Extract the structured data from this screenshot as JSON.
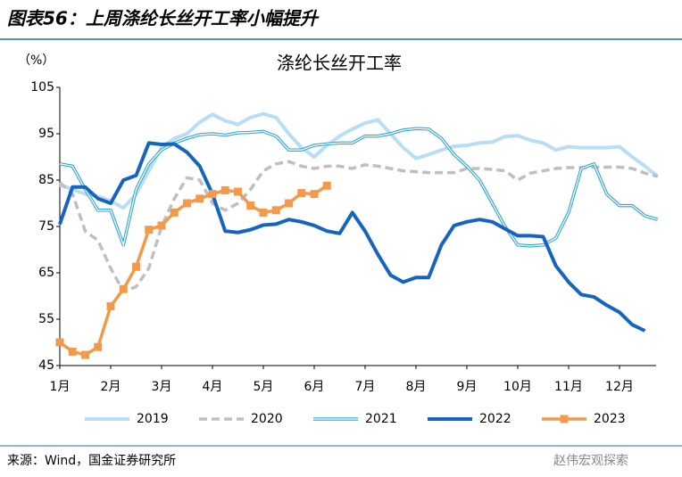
{
  "header": "图表56：上周涤纶长丝开工率小幅提升",
  "source": "来源：Wind，国金证券研究所",
  "watermark": "赵伟宏观探索",
  "chart_data": {
    "type": "line",
    "title": "涤纶长丝开工率",
    "y_label": "（%）",
    "x": [
      1,
      1.25,
      1.5,
      1.75,
      2,
      2.25,
      2.5,
      2.75,
      3,
      3.25,
      3.5,
      3.75,
      4,
      4.25,
      4.5,
      4.75,
      5,
      5.25,
      5.5,
      5.75,
      6,
      6.25,
      6.5,
      6.75,
      7,
      7.25,
      7.5,
      7.75,
      8,
      8.25,
      8.5,
      8.75,
      9,
      9.25,
      9.5,
      9.75,
      10,
      10.25,
      10.5,
      10.75,
      11,
      11.25,
      11.5,
      11.75,
      12,
      12.25,
      12.5,
      12.75
    ],
    "xlim": [
      1,
      12.72
    ],
    "xticks": [
      {
        "value": 1,
        "label": "1月"
      },
      {
        "value": 2,
        "label": "2月"
      },
      {
        "value": 3,
        "label": "3月"
      },
      {
        "value": 4,
        "label": "4月"
      },
      {
        "value": 5,
        "label": "5月"
      },
      {
        "value": 6,
        "label": "6月"
      },
      {
        "value": 7,
        "label": "7月"
      },
      {
        "value": 8,
        "label": "8月"
      },
      {
        "value": 9,
        "label": "9月"
      },
      {
        "value": 10,
        "label": "10月"
      },
      {
        "value": 11,
        "label": "11月"
      },
      {
        "value": 12,
        "label": "12月"
      }
    ],
    "ylim": [
      45,
      105
    ],
    "yticks": [
      45,
      55,
      65,
      75,
      85,
      95,
      105
    ],
    "grid": false,
    "legend": "bottom",
    "series": [
      {
        "name": "2019",
        "color": "#b8def5",
        "style": "solid",
        "values": [
          84,
          83,
          82,
          81.5,
          80.5,
          79,
          82,
          87,
          92,
          94,
          95,
          97.5,
          99.2,
          97.8,
          97,
          98.5,
          99.3,
          98.5,
          95,
          92,
          90,
          92.5,
          94.5,
          96,
          97.3,
          98,
          95,
          92,
          89.7,
          90.5,
          91.5,
          92.3,
          92.5,
          93,
          93.2,
          94.4,
          94.6,
          93.6,
          93,
          91.5,
          92.2,
          92,
          92,
          92,
          92.2,
          90,
          88,
          85.8
        ]
      },
      {
        "name": "2020",
        "color": "#bfbfbf",
        "style": "dashed",
        "values": [
          84.5,
          82,
          74,
          72,
          66,
          61,
          62,
          66,
          75,
          81,
          85.5,
          85,
          80,
          78.5,
          80,
          83,
          87,
          88.5,
          89,
          88,
          87.5,
          88,
          88,
          87.5,
          88.3,
          88,
          87.5,
          87,
          86.8,
          86.6,
          86.6,
          86.6,
          87.5,
          87.5,
          87.3,
          87,
          85,
          86.5,
          87,
          87.5,
          87.7,
          87.7,
          87.8,
          87.8,
          87.8,
          87.5,
          86.5,
          85.8
        ]
      },
      {
        "name": "2021",
        "color": "#2ea6d8",
        "style": "double",
        "values": [
          88.5,
          88,
          83,
          78.5,
          78.5,
          71,
          83,
          88.5,
          91.5,
          93,
          94,
          94.8,
          95,
          94.7,
          95.2,
          95.3,
          95.5,
          94.5,
          91.5,
          91.5,
          92.5,
          92.8,
          93,
          93,
          94.5,
          94.5,
          95,
          95.8,
          96.1,
          96,
          94,
          90.5,
          88,
          85,
          80,
          75,
          71,
          70.8,
          71,
          72.5,
          78,
          87.5,
          88.5,
          82,
          79.5,
          79.5,
          77.3,
          76.5
        ]
      },
      {
        "name": "2022",
        "color": "#1565c0",
        "style": "solid",
        "values": [
          75.5,
          83.5,
          83.5,
          81,
          80,
          85,
          86,
          93,
          92.7,
          92.8,
          91,
          88,
          82,
          74,
          73.7,
          74.3,
          75.3,
          75.5,
          76.5,
          76,
          75.2,
          74,
          73.5,
          78,
          74,
          69,
          64.5,
          63,
          64,
          64,
          71,
          75.2,
          76,
          76.5,
          76,
          74.5,
          73,
          73,
          72.8,
          66.5,
          63,
          60.3,
          59.8,
          58,
          56.5,
          53.8,
          52.5,
          null
        ]
      },
      {
        "name": "2023",
        "color": "#f39a4a",
        "style": "marker",
        "values": [
          50,
          48,
          47.3,
          49,
          57.8,
          61.5,
          66.3,
          74.3,
          75.2,
          78,
          80,
          81,
          82,
          82.8,
          82.5,
          79.5,
          78,
          78.5,
          80,
          82.2,
          82,
          83.8,
          null,
          null,
          null,
          null,
          null,
          null,
          null,
          null,
          null,
          null,
          null,
          null,
          null,
          null,
          null,
          null,
          null,
          null,
          null,
          null,
          null,
          null,
          null,
          null,
          null,
          null
        ]
      }
    ]
  }
}
